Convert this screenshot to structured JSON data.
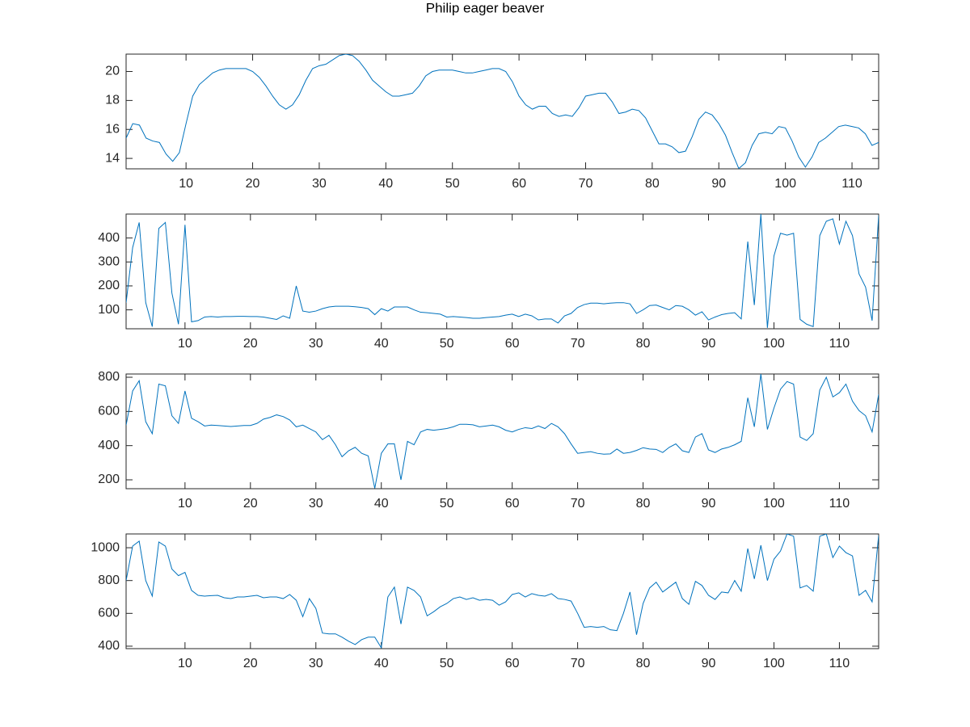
{
  "title": "Philip eager beaver",
  "chart_data": [
    {
      "type": "line",
      "x": [
        1,
        2,
        3,
        4,
        5,
        6,
        7,
        8,
        9,
        10,
        11,
        12,
        13,
        14,
        15,
        16,
        17,
        18,
        19,
        20,
        21,
        22,
        23,
        24,
        25,
        26,
        27,
        28,
        29,
        30,
        31,
        32,
        33,
        34,
        35,
        36,
        37,
        38,
        39,
        40,
        41,
        42,
        43,
        44,
        45,
        46,
        47,
        48,
        49,
        50,
        51,
        52,
        53,
        54,
        55,
        56,
        57,
        58,
        59,
        60,
        61,
        62,
        63,
        64,
        65,
        66,
        67,
        68,
        69,
        70,
        71,
        72,
        73,
        74,
        75,
        76,
        77,
        78,
        79,
        80,
        81,
        82,
        83,
        84,
        85,
        86,
        87,
        88,
        89,
        90,
        91,
        92,
        93,
        94,
        95,
        96,
        97,
        98,
        99,
        100,
        101,
        102,
        103,
        104,
        105,
        106,
        107,
        108,
        109,
        110,
        111,
        112,
        113,
        114
      ],
      "series": [
        {
          "color": "#0072bd",
          "values": [
            15.4,
            16.4,
            16.3,
            15.4,
            15.2,
            15.1,
            14.3,
            13.8,
            14.4,
            16.4,
            18.3,
            19.1,
            19.5,
            19.9,
            20.1,
            20.2,
            20.2,
            20.2,
            20.2,
            20.0,
            19.6,
            19.0,
            18.3,
            17.7,
            17.4,
            17.7,
            18.4,
            19.4,
            20.2,
            20.4,
            20.5,
            20.8,
            21.1,
            21.2,
            21.1,
            20.7,
            20.1,
            19.4,
            19.0,
            18.6,
            18.3,
            18.3,
            18.4,
            18.5,
            19.0,
            19.7,
            20.0,
            20.1,
            20.1,
            20.1,
            20.0,
            19.9,
            19.9,
            20.0,
            20.1,
            20.2,
            20.2,
            20.0,
            19.3,
            18.3,
            17.7,
            17.4,
            17.6,
            17.6,
            17.1,
            16.9,
            17.0,
            16.9,
            17.5,
            18.3,
            18.4,
            18.5,
            18.5,
            17.9,
            17.1,
            17.2,
            17.4,
            17.3,
            16.8,
            15.9,
            15.0,
            15.0,
            14.8,
            14.4,
            14.5,
            15.5,
            16.7,
            17.2,
            17.0,
            16.4,
            15.6,
            14.4,
            13.3,
            13.7,
            14.9,
            15.7,
            15.8,
            15.7,
            16.2,
            16.1,
            15.2,
            14.1,
            13.4,
            14.1,
            15.1,
            15.4,
            15.8,
            16.2,
            16.3,
            16.2,
            16.1,
            15.7,
            14.9,
            15.1
          ]
        }
      ],
      "xlim": [
        1,
        114
      ],
      "xticks": [
        10,
        20,
        30,
        40,
        50,
        60,
        70,
        80,
        90,
        100,
        110
      ],
      "ylim": [
        13.28,
        21.2
      ],
      "yticks": [
        14,
        16,
        18,
        20
      ]
    },
    {
      "type": "line",
      "x": [
        1,
        2,
        3,
        4,
        5,
        6,
        7,
        8,
        9,
        10,
        11,
        12,
        13,
        14,
        15,
        16,
        17,
        18,
        19,
        20,
        21,
        22,
        23,
        24,
        25,
        26,
        27,
        28,
        29,
        30,
        31,
        32,
        33,
        34,
        35,
        36,
        37,
        38,
        39,
        40,
        41,
        42,
        43,
        44,
        45,
        46,
        47,
        48,
        49,
        50,
        51,
        52,
        53,
        54,
        55,
        56,
        57,
        58,
        59,
        60,
        61,
        62,
        63,
        64,
        65,
        66,
        67,
        68,
        69,
        70,
        71,
        72,
        73,
        74,
        75,
        76,
        77,
        78,
        79,
        80,
        81,
        82,
        83,
        84,
        85,
        86,
        87,
        88,
        89,
        90,
        91,
        92,
        93,
        94,
        95,
        96,
        97,
        98,
        99,
        100,
        101,
        102,
        103,
        104,
        105,
        106,
        107,
        108,
        109,
        110,
        111,
        112,
        113,
        114,
        115,
        116
      ],
      "series": [
        {
          "color": "#0072bd",
          "values": [
            130,
            360,
            465,
            130,
            30,
            440,
            465,
            170,
            40,
            455,
            50,
            55,
            70,
            72,
            70,
            72,
            72,
            73,
            73,
            72,
            72,
            70,
            65,
            60,
            75,
            65,
            200,
            95,
            90,
            95,
            105,
            112,
            115,
            115,
            115,
            113,
            110,
            105,
            80,
            105,
            95,
            112,
            112,
            112,
            100,
            90,
            88,
            85,
            82,
            70,
            72,
            70,
            68,
            65,
            65,
            68,
            70,
            72,
            78,
            82,
            72,
            82,
            75,
            58,
            62,
            62,
            45,
            75,
            85,
            110,
            122,
            128,
            128,
            125,
            128,
            130,
            130,
            125,
            85,
            100,
            118,
            120,
            110,
            100,
            118,
            115,
            100,
            78,
            92,
            58,
            70,
            80,
            85,
            88,
            62,
            385,
            120,
            500,
            25,
            325,
            420,
            412,
            420,
            60,
            40,
            30,
            410,
            470,
            480,
            375,
            470,
            410,
            250,
            195,
            55,
            495
          ]
        }
      ],
      "xlim": [
        1,
        116
      ],
      "xticks": [
        10,
        20,
        30,
        40,
        50,
        60,
        70,
        80,
        90,
        100,
        110
      ],
      "ylim": [
        21,
        500
      ],
      "yticks": [
        100,
        200,
        300,
        400
      ]
    },
    {
      "type": "line",
      "x": [
        1,
        2,
        3,
        4,
        5,
        6,
        7,
        8,
        9,
        10,
        11,
        12,
        13,
        14,
        15,
        16,
        17,
        18,
        19,
        20,
        21,
        22,
        23,
        24,
        25,
        26,
        27,
        28,
        29,
        30,
        31,
        32,
        33,
        34,
        35,
        36,
        37,
        38,
        39,
        40,
        41,
        42,
        43,
        44,
        45,
        46,
        47,
        48,
        49,
        50,
        51,
        52,
        53,
        54,
        55,
        56,
        57,
        58,
        59,
        60,
        61,
        62,
        63,
        64,
        65,
        66,
        67,
        68,
        69,
        70,
        71,
        72,
        73,
        74,
        75,
        76,
        77,
        78,
        79,
        80,
        81,
        82,
        83,
        84,
        85,
        86,
        87,
        88,
        89,
        90,
        91,
        92,
        93,
        94,
        95,
        96,
        97,
        98,
        99,
        100,
        101,
        102,
        103,
        104,
        105,
        106,
        107,
        108,
        109,
        110,
        111,
        112,
        113,
        114,
        115,
        116
      ],
      "series": [
        {
          "color": "#0072bd",
          "values": [
            520,
            720,
            780,
            540,
            470,
            760,
            750,
            575,
            530,
            720,
            560,
            540,
            515,
            520,
            518,
            515,
            512,
            515,
            518,
            518,
            530,
            555,
            565,
            580,
            570,
            550,
            510,
            520,
            500,
            480,
            435,
            460,
            405,
            335,
            370,
            390,
            355,
            340,
            150,
            355,
            410,
            410,
            200,
            425,
            405,
            480,
            495,
            490,
            495,
            500,
            510,
            525,
            525,
            522,
            510,
            515,
            520,
            510,
            490,
            480,
            495,
            505,
            500,
            515,
            500,
            530,
            510,
            470,
            410,
            355,
            360,
            365,
            355,
            350,
            352,
            380,
            355,
            360,
            372,
            388,
            380,
            378,
            360,
            390,
            410,
            370,
            360,
            450,
            470,
            375,
            360,
            380,
            390,
            405,
            425,
            680,
            510,
            819,
            495,
            620,
            730,
            775,
            760,
            450,
            430,
            470,
            725,
            800,
            685,
            710,
            760,
            660,
            605,
            575,
            480,
            700
          ]
        }
      ],
      "xlim": [
        1,
        116
      ],
      "xticks": [
        10,
        20,
        30,
        40,
        50,
        60,
        70,
        80,
        90,
        100,
        110
      ],
      "ylim": [
        148,
        819
      ],
      "yticks": [
        200,
        400,
        600,
        800
      ]
    },
    {
      "type": "line",
      "x": [
        1,
        2,
        3,
        4,
        5,
        6,
        7,
        8,
        9,
        10,
        11,
        12,
        13,
        14,
        15,
        16,
        17,
        18,
        19,
        20,
        21,
        22,
        23,
        24,
        25,
        26,
        27,
        28,
        29,
        30,
        31,
        32,
        33,
        34,
        35,
        36,
        37,
        38,
        39,
        40,
        41,
        42,
        43,
        44,
        45,
        46,
        47,
        48,
        49,
        50,
        51,
        52,
        53,
        54,
        55,
        56,
        57,
        58,
        59,
        60,
        61,
        62,
        63,
        64,
        65,
        66,
        67,
        68,
        69,
        70,
        71,
        72,
        73,
        74,
        75,
        76,
        77,
        78,
        79,
        80,
        81,
        82,
        83,
        84,
        85,
        86,
        87,
        88,
        89,
        90,
        91,
        92,
        93,
        94,
        95,
        96,
        97,
        98,
        99,
        100,
        101,
        102,
        103,
        104,
        105,
        106,
        107,
        108,
        109,
        110,
        111,
        112,
        113,
        114,
        115,
        116
      ],
      "series": [
        {
          "color": "#0072bd",
          "values": [
            800,
            1010,
            1040,
            800,
            705,
            1035,
            1010,
            870,
            830,
            850,
            740,
            710,
            705,
            708,
            710,
            695,
            690,
            700,
            700,
            705,
            710,
            695,
            700,
            700,
            690,
            715,
            680,
            580,
            690,
            630,
            480,
            475,
            475,
            455,
            430,
            410,
            440,
            455,
            455,
            390,
            700,
            760,
            535,
            760,
            740,
            700,
            585,
            610,
            640,
            660,
            690,
            700,
            685,
            695,
            680,
            685,
            680,
            650,
            670,
            715,
            725,
            700,
            720,
            710,
            705,
            720,
            690,
            685,
            675,
            600,
            515,
            520,
            515,
            520,
            500,
            495,
            600,
            730,
            470,
            660,
            755,
            790,
            730,
            760,
            790,
            690,
            655,
            795,
            770,
            710,
            685,
            730,
            725,
            800,
            735,
            995,
            810,
            1015,
            800,
            930,
            980,
            1084,
            1070,
            755,
            770,
            735,
            1070,
            1084,
            940,
            1010,
            970,
            950,
            710,
            740,
            670,
            1075
          ]
        }
      ],
      "xlim": [
        1,
        116
      ],
      "xticks": [
        10,
        20,
        30,
        40,
        50,
        60,
        70,
        80,
        90,
        100,
        110
      ],
      "ylim": [
        385,
        1084
      ],
      "yticks": [
        400,
        600,
        800,
        1000
      ]
    }
  ]
}
